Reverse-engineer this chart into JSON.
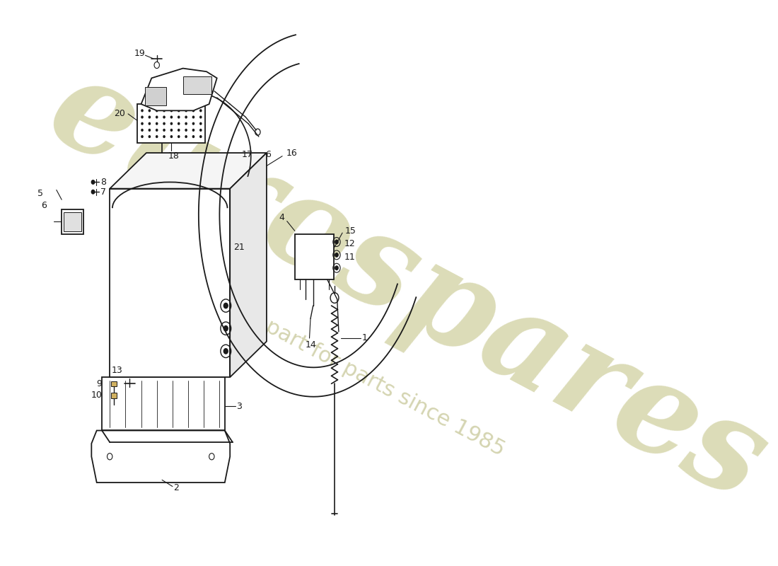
{
  "bg_color": "#ffffff",
  "line_color": "#1a1a1a",
  "watermark_color1": "#d8d8b0",
  "watermark_color2": "#d0d0a8",
  "fig_w": 11.0,
  "fig_h": 8.0,
  "dpi": 100
}
